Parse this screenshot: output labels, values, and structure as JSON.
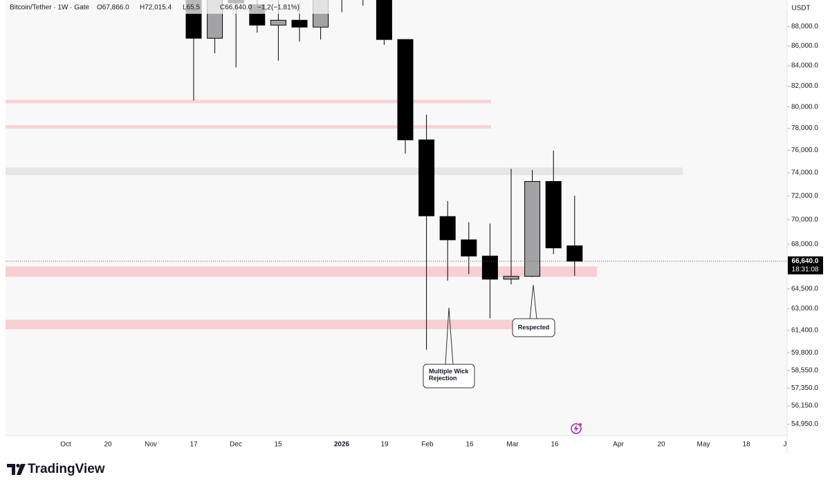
{
  "chart_data": {
    "type": "candlestick",
    "title": "Bitcoin/Tether · 1W · Gate",
    "ohlc_readout": [
      "O67,866.0",
      "H72,015.4",
      "L65,5",
      "C66,640.0",
      "−1,2",
      "(−1.81%)"
    ],
    "currency": "USDT",
    "log_scale": true,
    "ylim": [
      54300,
      90800
    ],
    "yticks": [
      {
        "value": 88000,
        "label": "88,000.0"
      },
      {
        "value": 86000,
        "label": "86,000.0"
      },
      {
        "value": 84000,
        "label": "84,000.0"
      },
      {
        "value": 82000,
        "label": "82,000.0"
      },
      {
        "value": 80000,
        "label": "80,000.0"
      },
      {
        "value": 78000,
        "label": "78,000.0"
      },
      {
        "value": 76000,
        "label": "76,000.0"
      },
      {
        "value": 74000,
        "label": "74,000.0"
      },
      {
        "value": 72000,
        "label": "72,000.0"
      },
      {
        "value": 70000,
        "label": "70,000.0"
      },
      {
        "value": 68000,
        "label": "68,000.0"
      },
      {
        "value": 64500,
        "label": "64,500.0"
      },
      {
        "value": 63000,
        "label": "63,000.0"
      },
      {
        "value": 61400,
        "label": "61,400.0"
      },
      {
        "value": 59800,
        "label": "59,800.0"
      },
      {
        "value": 58550,
        "label": "58,550.0"
      },
      {
        "value": 57350,
        "label": "57,350.0"
      },
      {
        "value": 56150,
        "label": "56,150.0"
      },
      {
        "value": 54950,
        "label": "54,950.0"
      }
    ],
    "x_labels": [
      "Oct",
      "20",
      "Nov",
      "17",
      "Dec",
      "15",
      "2026",
      "19",
      "Feb",
      "16",
      "Mar",
      "16",
      "Apr",
      "20",
      "May",
      "18",
      "J"
    ],
    "open": [
      93500,
      86780,
      95000,
      90300,
      88140,
      88650,
      87930,
      91500,
      93500,
      92500,
      86650,
      76940,
      70260,
      68350,
      67050,
      65240,
      65460,
      73240,
      67866
    ],
    "high": [
      95000,
      92000,
      96000,
      91500,
      90780,
      90500,
      92000,
      93000,
      95000,
      93500,
      86650,
      79270,
      71560,
      69790,
      69680,
      74340,
      74240,
      75970,
      72015.4
    ],
    "low": [
      80610,
      85250,
      83850,
      87360,
      84500,
      86440,
      86640,
      89500,
      90200,
      86100,
      75700,
      60010,
      65130,
      65630,
      62290,
      64840,
      65400,
      67200,
      65500
    ],
    "close": [
      86780,
      91000,
      90480,
      88140,
      88650,
      87930,
      91500,
      92500,
      91500,
      86650,
      76940,
      70320,
      68350,
      67050,
      65240,
      65460,
      73240,
      67700,
      66640
    ],
    "up_color": "#a3a3a6",
    "down_color": "#000000",
    "zones": [
      {
        "low": 80350,
        "high": 80680,
        "color": "#f7d4d6"
      },
      {
        "low": 77980,
        "high": 78290,
        "color": "#f7d4d6"
      },
      {
        "low": 73800,
        "high": 74460,
        "color": "#e6e6e8"
      },
      {
        "low": 65420,
        "high": 66230,
        "color": "#f8cfd3"
      },
      {
        "low": 61480,
        "high": 62180,
        "color": "#f8cfd3"
      }
    ],
    "last_price": {
      "value": 66640,
      "label": "66,640.0"
    },
    "countdown": "18:31:08",
    "annotations": [
      "Multiple Wick\nRejection",
      "Respected"
    ],
    "brand": "TradingView"
  }
}
